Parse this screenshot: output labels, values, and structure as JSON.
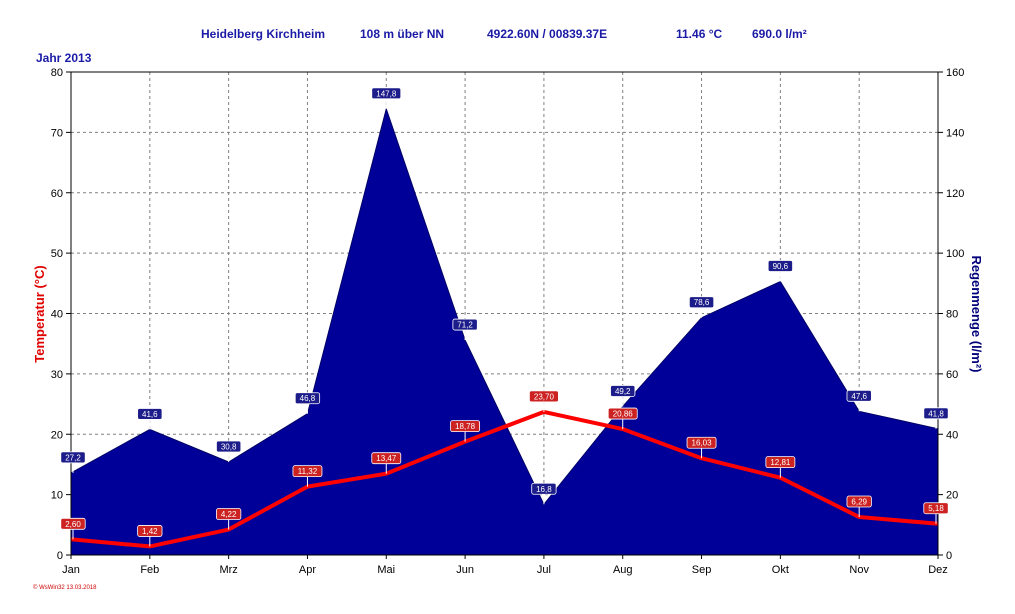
{
  "header": {
    "station": "Heidelberg Kirchheim",
    "altitude": "108 m über NN",
    "coords": "4922.60N / 00839.37E",
    "avg_temp": "11.46 °C",
    "total_rain": "690.0 l/m²"
  },
  "year_label": "Jahr  2013",
  "footer": "© WsWin32  13.03.2018",
  "colors": {
    "temperature": "#ff0000",
    "rain_fill": "#000099",
    "rain_label_bg": "#1c1c8a",
    "temp_label_bg": "#cc2222"
  },
  "chart_data": {
    "type": "area",
    "categories": [
      "Jan",
      "Feb",
      "Mrz",
      "Apr",
      "Mai",
      "Jun",
      "Jul",
      "Aug",
      "Sep",
      "Okt",
      "Nov",
      "Dez"
    ],
    "series": [
      {
        "name": "Regenmenge",
        "type": "area",
        "axis": "right",
        "values": [
          27.2,
          41.6,
          30.8,
          46.8,
          147.8,
          71.2,
          16.8,
          49.2,
          78.6,
          90.6,
          47.6,
          41.8
        ],
        "labels": [
          "27,2",
          "41,6",
          "30,8",
          "46,8",
          "147,8",
          "71,2",
          "16,8",
          "49,2",
          "78,6",
          "90,6",
          "47,6",
          "41,8"
        ]
      },
      {
        "name": "Temperatur",
        "type": "line",
        "axis": "left",
        "values": [
          2.6,
          1.42,
          4.22,
          11.32,
          13.47,
          18.78,
          23.7,
          20.86,
          16.03,
          12.81,
          6.29,
          5.18
        ],
        "labels": [
          "2,60",
          "1,42",
          "4,22",
          "11,32",
          "13,47",
          "18,78",
          "23,70",
          "20,86",
          "16,03",
          "12,81",
          "6,29",
          "5,18"
        ]
      }
    ],
    "yleft": {
      "label": "Temperatur  (°C)",
      "min": 0,
      "max": 80,
      "ticks": [
        0,
        10,
        20,
        30,
        40,
        50,
        60,
        70,
        80
      ]
    },
    "yright": {
      "label": "Regenmenge   (l/m²)",
      "min": 0,
      "max": 160,
      "ticks": [
        0,
        20,
        40,
        60,
        80,
        100,
        120,
        140,
        160
      ]
    },
    "grid": true
  }
}
